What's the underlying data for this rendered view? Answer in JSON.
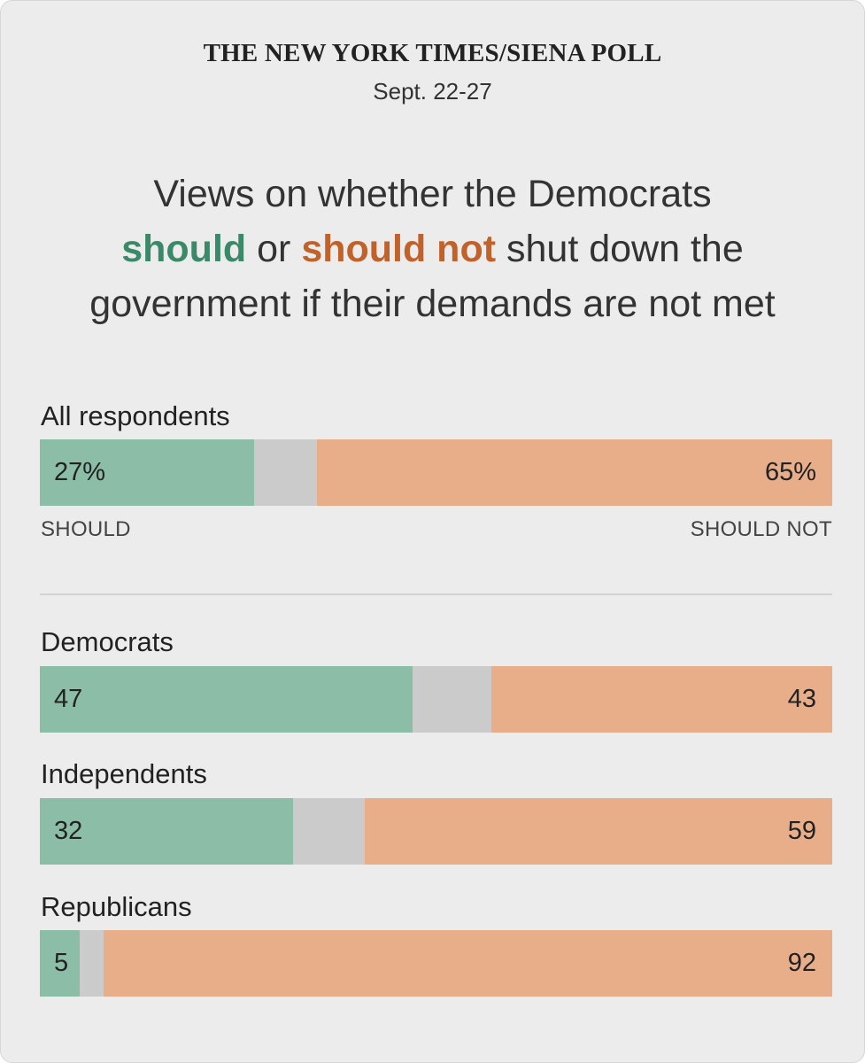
{
  "header": {
    "source": "THE NEW YORK TIMES/SIENA POLL",
    "date": "Sept. 22-27"
  },
  "headline": {
    "line1": "Views on whether the Democrats",
    "should": "should",
    "or": " or ",
    "should_not": "should not",
    "line2_rest": " shut down the",
    "line3": "government if their demands are not met"
  },
  "legend": {
    "should": "SHOULD",
    "should_not": "SHOULD NOT"
  },
  "colors": {
    "should": "#8bbda7",
    "unsure": "#cbcbcb",
    "should_not": "#e8ae8a",
    "headline_should": "#3a8a6a",
    "headline_should_not": "#c1622a"
  },
  "chart_data": {
    "type": "bar",
    "orientation": "horizontal-stacked",
    "categories": [
      "All respondents",
      "Democrats",
      "Independents",
      "Republicans"
    ],
    "series": [
      {
        "name": "SHOULD",
        "values": [
          27,
          47,
          32,
          5
        ]
      },
      {
        "values": [
          8,
          10,
          9,
          3
        ]
      },
      {
        "name": "SHOULD NOT",
        "values": [
          65,
          43,
          59,
          92
        ]
      }
    ],
    "value_labels": [
      {
        "left": "27%",
        "right": "65%"
      },
      {
        "left": "47",
        "right": "43"
      },
      {
        "left": "32",
        "right": "59"
      },
      {
        "left": "5",
        "right": "92"
      }
    ],
    "xlim": [
      0,
      100
    ]
  }
}
